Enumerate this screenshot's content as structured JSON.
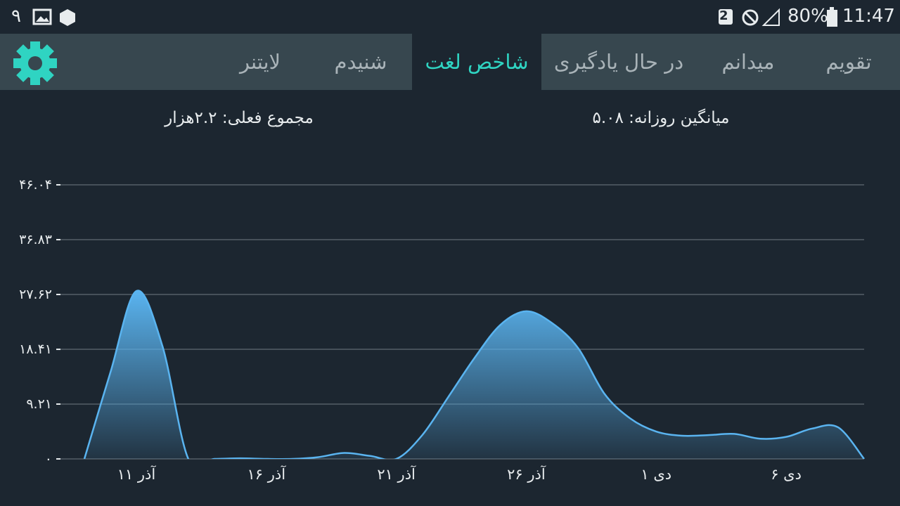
{
  "status_bar": {
    "left_text": "۹",
    "sim": "2",
    "battery": "80%",
    "time": "11:47"
  },
  "tabs": [
    "تقویم",
    "میدانم",
    "در حال یادگیری",
    "شاخص لغت",
    "شنیدم",
    "لایتنر"
  ],
  "active_tab": 3,
  "stats": {
    "daily_average": "میانگین روزانه: ۵.۰۸",
    "current_total": "مجموع فعلی: ۲.۲هزار"
  },
  "chart_data": {
    "type": "area",
    "categories": [
      null,
      null,
      "۱۱ آذر",
      null,
      null,
      null,
      null,
      "۱۶ آذر",
      null,
      null,
      null,
      null,
      "۲۱ آذر",
      null,
      null,
      null,
      null,
      "۲۶ آذر",
      null,
      null,
      null,
      null,
      "۱ دی",
      null,
      null,
      null,
      null,
      "۶ دی",
      null,
      null,
      null
    ],
    "values": [
      0,
      14.5,
      28.2,
      19,
      0,
      0,
      0.1,
      0,
      0,
      0.3,
      1,
      0.5,
      0,
      4,
      10.4,
      16.9,
      22.5,
      24.8,
      22.8,
      18.6,
      11,
      6.8,
      4.6,
      3.9,
      4,
      4.2,
      3.4,
      3.7,
      5.1,
      5.3,
      0
    ],
    "color": "#5ab4f0",
    "ylim": [
      0,
      46.04
    ],
    "yticks": [
      {
        "value": 0,
        "label": "۰"
      },
      {
        "value": 9.21,
        "label": "۹.۲۱"
      },
      {
        "value": 18.41,
        "label": "۱۸.۴۱"
      },
      {
        "value": 27.62,
        "label": "۲۷.۶۲"
      },
      {
        "value": 36.83,
        "label": "۳۶.۸۳"
      },
      {
        "value": 46.04,
        "label": "۴۶.۰۴"
      }
    ],
    "grid": true
  }
}
